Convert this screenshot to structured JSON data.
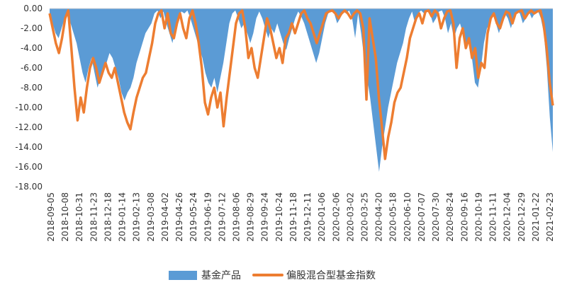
{
  "chart_data": {
    "type": "area",
    "title": "",
    "xlabel": "",
    "ylabel": "",
    "ylim": [
      -18,
      0
    ],
    "ytick_step": 2,
    "yticks": [
      "0.00",
      "-2.00",
      "-4.00",
      "-6.00",
      "-8.00",
      "-10.00",
      "-12.00",
      "-14.00",
      "-16.00",
      "-18.00"
    ],
    "x_tick_labels": [
      "2018-09-05",
      "2018-10-08",
      "2018-10-31",
      "2018-11-23",
      "2018-12-18",
      "2019-01-14",
      "2019-02-13",
      "2019-03-08",
      "2019-04-02",
      "2019-04-26",
      "2019-05-24",
      "2019-06-19",
      "2019-07-12",
      "2019-08-06",
      "2019-08-29",
      "2019-09-24",
      "2019-10-24",
      "2019-11-18",
      "2019-12-11",
      "2020-01-06",
      "2020-02-06",
      "2020-03-02",
      "2020-03-25",
      "2020-04-20",
      "2020-05-18",
      "2020-06-10",
      "2020-07-07",
      "2020-07-30",
      "2020-08-24",
      "2020-09-16",
      "2020-10-19",
      "2020-11-11",
      "2020-12-04",
      "2020-12-29",
      "2021-01-22",
      "2021-02-23"
    ],
    "grid": false,
    "legend_position": "bottom",
    "colors": {
      "fund": "#5B9BD5",
      "index": "#ED7D31"
    },
    "series": [
      {
        "name": "基金产品",
        "type": "area",
        "values": [
          -0.5,
          -1.5,
          -2.5,
          -3.0,
          -2.0,
          -1.0,
          -0.3,
          -1.5,
          -2.5,
          -3.5,
          -5.0,
          -6.5,
          -7.5,
          -6.0,
          -5.0,
          -6.5,
          -8.0,
          -7.0,
          -6.0,
          -5.5,
          -4.5,
          -5.0,
          -6.0,
          -7.0,
          -8.5,
          -9.3,
          -8.5,
          -8.0,
          -7.0,
          -5.5,
          -4.5,
          -3.5,
          -2.5,
          -2.0,
          -1.5,
          -0.5,
          -0.2,
          -1.0,
          -0.3,
          -1.5,
          -2.5,
          -3.5,
          -2.0,
          -1.0,
          -0.3,
          -0.5,
          -0.2,
          -1.0,
          -2.0,
          -3.0,
          -4.0,
          -5.0,
          -6.5,
          -7.5,
          -8.0,
          -7.0,
          -8.5,
          -7.0,
          -5.5,
          -3.5,
          -1.5,
          -0.5,
          -0.2,
          -1.0,
          -2.0,
          -1.5,
          -2.5,
          -3.5,
          -2.5,
          -1.0,
          -0.3,
          -1.0,
          -2.0,
          -3.0,
          -2.0,
          -2.5,
          -1.5,
          -2.5,
          -3.5,
          -4.2,
          -3.0,
          -2.0,
          -1.0,
          -0.3,
          -0.8,
          -1.5,
          -2.5,
          -3.5,
          -4.5,
          -5.5,
          -4.5,
          -3.0,
          -1.5,
          -0.5,
          -0.2,
          -0.5,
          -1.5,
          -1.0,
          -0.3,
          -0.5,
          -0.2,
          -1.0,
          -3.0,
          -0.5,
          -2.5,
          -5.0,
          -7.0,
          -9.0,
          -11.5,
          -14.0,
          -16.5,
          -14.0,
          -12.0,
          -10.0,
          -8.5,
          -7.0,
          -5.5,
          -4.5,
          -3.5,
          -2.0,
          -1.0,
          -0.3,
          -1.5,
          -0.5,
          -0.2,
          -0.5,
          -0.2,
          -0.5,
          -1.5,
          -1.0,
          -0.3,
          -0.2,
          -1.0,
          -2.5,
          -1.5,
          -3.0,
          -2.0,
          -1.5,
          -2.5,
          -4.0,
          -3.0,
          -5.0,
          -7.5,
          -8.0,
          -6.0,
          -3.5,
          -2.0,
          -1.5,
          -0.5,
          -1.5,
          -2.5,
          -1.5,
          -0.5,
          -1.0,
          -2.0,
          -1.0,
          -0.3,
          -0.5,
          -1.5,
          -1.0,
          -0.3,
          -1.0,
          -0.5,
          -0.2,
          -1.0,
          -2.5,
          -6.0,
          -11.0,
          -14.5
        ]
      },
      {
        "name": "偏股混合型基金指数",
        "type": "line",
        "values": [
          -0.5,
          -2.0,
          -3.5,
          -4.5,
          -3.0,
          -1.0,
          -0.2,
          -4.0,
          -8.0,
          -11.3,
          -9.0,
          -10.5,
          -8.0,
          -6.0,
          -5.0,
          -6.0,
          -7.5,
          -6.5,
          -5.5,
          -6.5,
          -7.0,
          -6.0,
          -7.5,
          -9.0,
          -10.5,
          -11.5,
          -12.2,
          -10.5,
          -9.0,
          -8.0,
          -7.0,
          -6.5,
          -5.0,
          -3.5,
          -1.5,
          -0.5,
          -0.2,
          -2.0,
          -0.5,
          -2.5,
          -3.0,
          -1.5,
          -0.5,
          -2.0,
          -3.0,
          -1.0,
          -0.2,
          -1.5,
          -3.5,
          -6.0,
          -9.5,
          -10.7,
          -9.0,
          -8.0,
          -10.0,
          -8.5,
          -11.9,
          -9.0,
          -6.5,
          -4.0,
          -1.5,
          -0.5,
          -0.2,
          -2.0,
          -5.0,
          -4.0,
          -6.0,
          -7.0,
          -5.0,
          -3.0,
          -1.0,
          -2.0,
          -3.5,
          -5.0,
          -4.0,
          -5.5,
          -3.0,
          -2.5,
          -1.5,
          -2.5,
          -1.5,
          -0.5,
          -0.2,
          -1.0,
          -1.5,
          -2.5,
          -3.5,
          -2.5,
          -1.5,
          -0.5,
          -0.3,
          -0.2,
          -0.5,
          -1.0,
          -0.5,
          -0.2,
          -0.5,
          -1.0,
          -0.5,
          -0.2,
          -0.5,
          -2.0,
          -9.2,
          -1.0,
          -3.0,
          -5.0,
          -9.0,
          -12.0,
          -15.2,
          -13.0,
          -11.5,
          -9.5,
          -8.5,
          -8.0,
          -6.5,
          -5.0,
          -3.0,
          -2.0,
          -1.0,
          -0.5,
          -1.5,
          -0.3,
          -0.2,
          -0.8,
          -0.2,
          -0.5,
          -2.0,
          -1.0,
          -0.3,
          -0.2,
          -1.5,
          -6.0,
          -3.0,
          -2.0,
          -4.0,
          -3.0,
          -5.0,
          -4.0,
          -7.0,
          -5.5,
          -6.0,
          -2.5,
          -1.0,
          -0.5,
          -1.5,
          -2.0,
          -1.0,
          -0.3,
          -0.5,
          -1.5,
          -0.5,
          -0.3,
          -0.2,
          -1.0,
          -0.5,
          -0.2,
          -0.5,
          -0.3,
          -0.2,
          -1.5,
          -4.0,
          -7.5,
          -9.8
        ]
      }
    ]
  }
}
